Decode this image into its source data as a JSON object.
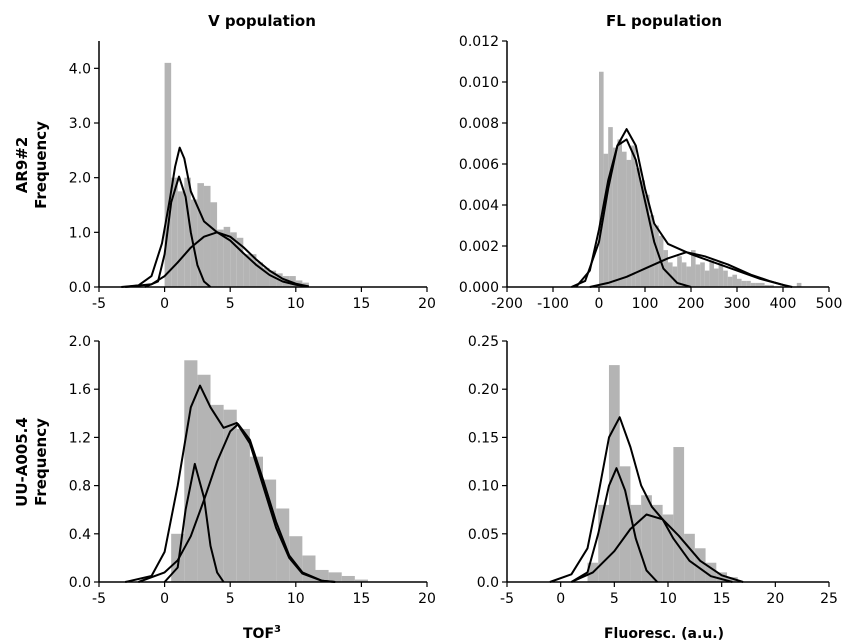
{
  "colors": {
    "hist": "#b4b4b4",
    "curve": "#000000"
  },
  "row_labels": [
    "AR9#2",
    "UU-A005.4"
  ],
  "chart_data": [
    {
      "type": "bar",
      "subtype": "histogram-with-density",
      "title": "V population",
      "ylabel": "Frequency",
      "xlabel": "",
      "xlim": [
        -5,
        20
      ],
      "ylim": [
        0,
        4.5
      ],
      "xticks": [
        -5,
        0,
        5,
        10,
        15,
        20
      ],
      "yticks": [
        0,
        1,
        2,
        3,
        4
      ],
      "xtick_labels": [
        "-5",
        "0",
        "5",
        "10",
        "15",
        "20"
      ],
      "ytick_labels": [
        "0.0",
        "1.0",
        "2.0",
        "3.0",
        "4.0"
      ],
      "bin_width": 0.5,
      "bins": [
        [
          0,
          4.1
        ],
        [
          0.5,
          2.0
        ],
        [
          1,
          1.75
        ],
        [
          1.5,
          2.0
        ],
        [
          2,
          1.6
        ],
        [
          2.5,
          1.9
        ],
        [
          3,
          1.85
        ],
        [
          3.5,
          1.55
        ],
        [
          4,
          1.05
        ],
        [
          4.5,
          1.1
        ],
        [
          5,
          1.0
        ],
        [
          5.5,
          0.9
        ],
        [
          6,
          0.6
        ],
        [
          6.5,
          0.6
        ],
        [
          7,
          0.45
        ],
        [
          7.5,
          0.35
        ],
        [
          8,
          0.3
        ],
        [
          8.5,
          0.25
        ],
        [
          9,
          0.2
        ],
        [
          9.5,
          0.2
        ],
        [
          10,
          0.12
        ],
        [
          10.5,
          0.08
        ]
      ],
      "curves": [
        {
          "points": [
            [
              -3.3,
              0
            ],
            [
              -2,
              0.03
            ],
            [
              -1,
              0.2
            ],
            [
              -0.2,
              0.8
            ],
            [
              0.4,
              1.6
            ],
            [
              0.8,
              2.2
            ],
            [
              1.15,
              2.55
            ],
            [
              1.5,
              2.35
            ],
            [
              2,
              1.75
            ],
            [
              3,
              1.2
            ],
            [
              4,
              1.0
            ],
            [
              5,
              0.85
            ],
            [
              6,
              0.62
            ],
            [
              7,
              0.4
            ],
            [
              8,
              0.22
            ],
            [
              9,
              0.1
            ],
            [
              10,
              0.04
            ],
            [
              11,
              0.01
            ]
          ]
        },
        {
          "points": [
            [
              -1.5,
              0
            ],
            [
              -0.5,
              0.1
            ],
            [
              0,
              0.6
            ],
            [
              0.5,
              1.55
            ],
            [
              1.1,
              2.02
            ],
            [
              1.6,
              1.65
            ],
            [
              2,
              1.0
            ],
            [
              2.5,
              0.4
            ],
            [
              3,
              0.1
            ],
            [
              3.5,
              0
            ]
          ]
        },
        {
          "points": [
            [
              -3,
              0
            ],
            [
              -1,
              0.05
            ],
            [
              0,
              0.2
            ],
            [
              1,
              0.45
            ],
            [
              2,
              0.72
            ],
            [
              3,
              0.92
            ],
            [
              4,
              1.0
            ],
            [
              5,
              0.92
            ],
            [
              6,
              0.73
            ],
            [
              7,
              0.5
            ],
            [
              8,
              0.3
            ],
            [
              9,
              0.15
            ],
            [
              10,
              0.06
            ],
            [
              11,
              0.01
            ]
          ]
        }
      ]
    },
    {
      "type": "bar",
      "subtype": "histogram-with-density",
      "title": "FL population",
      "ylabel": "Frequency",
      "xlabel": "",
      "xlim": [
        -200,
        500
      ],
      "ylim": [
        0,
        0.012
      ],
      "xticks": [
        -200,
        -100,
        0,
        100,
        200,
        300,
        400,
        500
      ],
      "yticks": [
        0,
        0.002,
        0.004,
        0.006,
        0.008,
        0.01,
        0.012
      ],
      "xtick_labels": [
        "-200",
        "-100",
        "0",
        "100",
        "200",
        "300",
        "400",
        "500"
      ],
      "ytick_labels": [
        "0.000",
        "0.002",
        "0.004",
        "0.006",
        "0.008",
        "0.010",
        "0.012"
      ],
      "bin_width": 10,
      "bins": [
        [
          0,
          0.0105
        ],
        [
          10,
          0.0065
        ],
        [
          20,
          0.0078
        ],
        [
          30,
          0.0068
        ],
        [
          40,
          0.0072
        ],
        [
          50,
          0.0066
        ],
        [
          60,
          0.0062
        ],
        [
          70,
          0.0069
        ],
        [
          80,
          0.0058
        ],
        [
          90,
          0.0052
        ],
        [
          100,
          0.0045
        ],
        [
          110,
          0.0035
        ],
        [
          120,
          0.003
        ],
        [
          130,
          0.0025
        ],
        [
          140,
          0.0018
        ],
        [
          150,
          0.0012
        ],
        [
          160,
          0.001
        ],
        [
          170,
          0.0015
        ],
        [
          180,
          0.0012
        ],
        [
          190,
          0.001
        ],
        [
          200,
          0.0018
        ],
        [
          210,
          0.0011
        ],
        [
          220,
          0.0012
        ],
        [
          230,
          0.0008
        ],
        [
          240,
          0.0013
        ],
        [
          250,
          0.0009
        ],
        [
          260,
          0.0012
        ],
        [
          270,
          0.0008
        ],
        [
          280,
          0.0005
        ],
        [
          290,
          0.0006
        ],
        [
          300,
          0.0004
        ],
        [
          310,
          0.0003
        ],
        [
          320,
          0.0003
        ],
        [
          330,
          0.0002
        ],
        [
          340,
          0.0002
        ],
        [
          350,
          0.0002
        ],
        [
          360,
          0.0001
        ],
        [
          370,
          0.0001
        ],
        [
          430,
          0.0002
        ]
      ],
      "curves": [
        {
          "points": [
            [
              -60,
              0
            ],
            [
              -30,
              0.0003
            ],
            [
              0,
              0.0022
            ],
            [
              20,
              0.0048
            ],
            [
              40,
              0.0069
            ],
            [
              60,
              0.0077
            ],
            [
              80,
              0.0069
            ],
            [
              100,
              0.0048
            ],
            [
              120,
              0.0031
            ],
            [
              150,
              0.0021
            ],
            [
              200,
              0.0016
            ],
            [
              250,
              0.0012
            ],
            [
              300,
              0.0008
            ],
            [
              350,
              0.0004
            ],
            [
              400,
              0.0001
            ]
          ]
        },
        {
          "points": [
            [
              -50,
              0
            ],
            [
              -20,
              0.0008
            ],
            [
              0,
              0.0028
            ],
            [
              20,
              0.0052
            ],
            [
              40,
              0.0069
            ],
            [
              60,
              0.0072
            ],
            [
              80,
              0.0062
            ],
            [
              100,
              0.0042
            ],
            [
              120,
              0.0022
            ],
            [
              140,
              0.0009
            ],
            [
              170,
              0.0002
            ],
            [
              200,
              0
            ]
          ]
        },
        {
          "points": [
            [
              -20,
              0
            ],
            [
              20,
              0.0002
            ],
            [
              60,
              0.0005
            ],
            [
              100,
              0.0009
            ],
            [
              150,
              0.0014
            ],
            [
              190,
              0.0017
            ],
            [
              230,
              0.0015
            ],
            [
              280,
              0.0011
            ],
            [
              330,
              0.0006
            ],
            [
              370,
              0.0003
            ],
            [
              400,
              0.0001
            ],
            [
              420,
              0
            ]
          ]
        }
      ]
    },
    {
      "type": "bar",
      "subtype": "histogram-with-density",
      "title": "",
      "ylabel": "Frequency",
      "xlabel": "TOF³",
      "xlim": [
        -5,
        20
      ],
      "ylim": [
        0,
        2.0
      ],
      "xticks": [
        -5,
        0,
        5,
        10,
        15,
        20
      ],
      "yticks": [
        0,
        0.4,
        0.8,
        1.2,
        1.6,
        2.0
      ],
      "xtick_labels": [
        "-5",
        "0",
        "5",
        "10",
        "15",
        "20"
      ],
      "ytick_labels": [
        "0.0",
        "0.4",
        "0.8",
        "1.2",
        "1.6",
        "2.0"
      ],
      "bin_width": 1,
      "bins": [
        [
          0.5,
          0.4
        ],
        [
          1.5,
          1.84
        ],
        [
          2.5,
          1.72
        ],
        [
          3.5,
          1.47
        ],
        [
          4.5,
          1.43
        ],
        [
          5.5,
          1.27
        ],
        [
          6.5,
          1.04
        ],
        [
          7.5,
          0.85
        ],
        [
          8.5,
          0.61
        ],
        [
          9.5,
          0.38
        ],
        [
          10.5,
          0.22
        ],
        [
          11.5,
          0.1
        ],
        [
          12.5,
          0.08
        ],
        [
          13.5,
          0.05
        ],
        [
          14.5,
          0.02
        ]
      ],
      "curves": [
        {
          "points": [
            [
              -3,
              0
            ],
            [
              -1,
              0.05
            ],
            [
              0,
              0.25
            ],
            [
              1,
              0.8
            ],
            [
              2,
              1.45
            ],
            [
              2.7,
              1.63
            ],
            [
              3.5,
              1.45
            ],
            [
              4.5,
              1.28
            ],
            [
              5.5,
              1.32
            ],
            [
              6.5,
              1.15
            ],
            [
              7.5,
              0.8
            ],
            [
              8.5,
              0.45
            ],
            [
              9.5,
              0.2
            ],
            [
              10.5,
              0.07
            ],
            [
              12,
              0.01
            ],
            [
              13,
              0
            ]
          ]
        },
        {
          "points": [
            [
              0,
              0
            ],
            [
              1,
              0.12
            ],
            [
              1.6,
              0.6
            ],
            [
              2.3,
              0.98
            ],
            [
              3,
              0.7
            ],
            [
              3.5,
              0.3
            ],
            [
              4,
              0.08
            ],
            [
              4.5,
              0
            ]
          ]
        },
        {
          "points": [
            [
              -2,
              0
            ],
            [
              0,
              0.08
            ],
            [
              1,
              0.18
            ],
            [
              2,
              0.38
            ],
            [
              3,
              0.68
            ],
            [
              4,
              1.0
            ],
            [
              5,
              1.25
            ],
            [
              5.6,
              1.31
            ],
            [
              6.5,
              1.18
            ],
            [
              7.5,
              0.85
            ],
            [
              8.5,
              0.5
            ],
            [
              9.5,
              0.22
            ],
            [
              10.5,
              0.08
            ],
            [
              12,
              0.01
            ],
            [
              13,
              0
            ]
          ]
        }
      ]
    },
    {
      "type": "bar",
      "subtype": "histogram-with-density",
      "title": "",
      "ylabel": "Frequency",
      "xlabel": "Fluoresc. (a.u.)",
      "xlim": [
        -5,
        25
      ],
      "ylim": [
        0,
        0.25
      ],
      "xticks": [
        -5,
        0,
        5,
        10,
        15,
        20,
        25
      ],
      "yticks": [
        0,
        0.05,
        0.1,
        0.15,
        0.2,
        0.25
      ],
      "xtick_labels": [
        "-5",
        "0",
        "5",
        "10",
        "15",
        "20",
        "25"
      ],
      "ytick_labels": [
        "0.0",
        "0.05",
        "0.10",
        "0.15",
        "0.20",
        "0.25"
      ],
      "bin_width": 1,
      "bins": [
        [
          2.5,
          0.02
        ],
        [
          3.5,
          0.08
        ],
        [
          4.5,
          0.225
        ],
        [
          5.5,
          0.12
        ],
        [
          6.5,
          0.08
        ],
        [
          7.5,
          0.09
        ],
        [
          8.5,
          0.08
        ],
        [
          9.5,
          0.07
        ],
        [
          10.5,
          0.14
        ],
        [
          11.5,
          0.05
        ],
        [
          12.5,
          0.035
        ],
        [
          13.5,
          0.02
        ],
        [
          14.5,
          0.01
        ],
        [
          15.5,
          0.005
        ]
      ],
      "curves": [
        {
          "points": [
            [
              -1,
              0
            ],
            [
              1,
              0.008
            ],
            [
              2.5,
              0.035
            ],
            [
              3.5,
              0.09
            ],
            [
              4.5,
              0.15
            ],
            [
              5.5,
              0.171
            ],
            [
              6.5,
              0.14
            ],
            [
              7.5,
              0.1
            ],
            [
              8.5,
              0.078
            ],
            [
              9.5,
              0.065
            ],
            [
              10.5,
              0.045
            ],
            [
              12,
              0.022
            ],
            [
              14,
              0.006
            ],
            [
              16,
              0
            ]
          ]
        },
        {
          "points": [
            [
              1,
              0
            ],
            [
              2.5,
              0.01
            ],
            [
              3.5,
              0.05
            ],
            [
              4.5,
              0.1
            ],
            [
              5.2,
              0.118
            ],
            [
              6,
              0.095
            ],
            [
              7,
              0.045
            ],
            [
              8,
              0.012
            ],
            [
              9,
              0
            ]
          ]
        },
        {
          "points": [
            [
              1,
              0
            ],
            [
              3,
              0.01
            ],
            [
              5,
              0.032
            ],
            [
              6.5,
              0.055
            ],
            [
              8,
              0.07
            ],
            [
              9.5,
              0.065
            ],
            [
              11,
              0.048
            ],
            [
              13,
              0.022
            ],
            [
              15,
              0.007
            ],
            [
              17,
              0
            ]
          ]
        }
      ]
    }
  ]
}
